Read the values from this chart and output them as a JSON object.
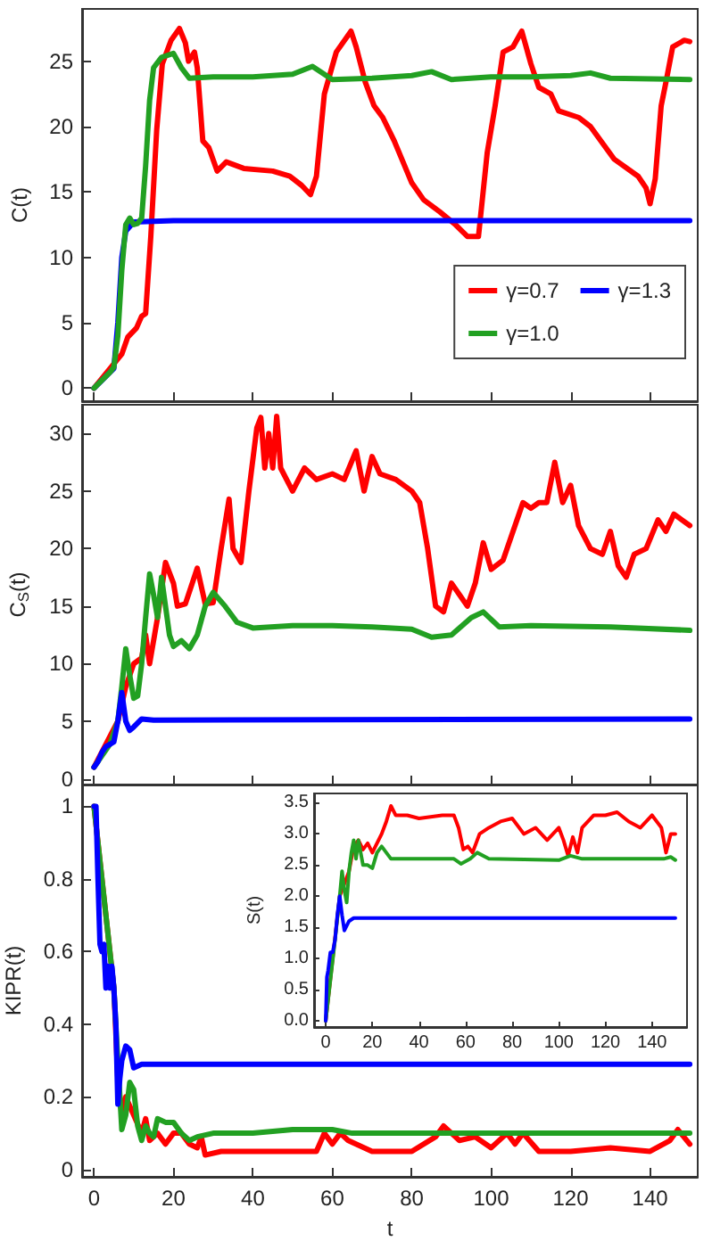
{
  "chart_data": [
    {
      "type": "line",
      "ylabel": "C(t)",
      "xlim": [
        -3,
        152
      ],
      "xticks": [
        0,
        20,
        40,
        60,
        80,
        100,
        120,
        140
      ],
      "ylim": [
        -1,
        29
      ],
      "yticks": [
        0,
        5,
        10,
        15,
        20,
        25
      ],
      "tick_labels": "y",
      "legend": "bottom right",
      "grid": false,
      "marker": "none",
      "line_style": "solid",
      "series": [
        {
          "name": "γ=0.7",
          "color": "#ff0000",
          "x": [
            0,
            7,
            8.5,
            10.7,
            12,
            13,
            14.3,
            15.8,
            17.2,
            19.4,
            21.5,
            23,
            23.8,
            25.3,
            26,
            27.4,
            28.9,
            31,
            33.3,
            37.7,
            45,
            49.3,
            52.3,
            54.5,
            56,
            58,
            61,
            64.7,
            66,
            68.3,
            70.5,
            72.7,
            75.6,
            80,
            83,
            87,
            91,
            94,
            96.8,
            99,
            101,
            103,
            105.5,
            107.7,
            110,
            112,
            115,
            117,
            122,
            125,
            131,
            137,
            139,
            140,
            141.3,
            142.8,
            144,
            145.7,
            148.6,
            150
          ],
          "values": [
            0,
            2.6,
            3.9,
            4.6,
            5.5,
            5.7,
            11.6,
            19.8,
            24.8,
            26.6,
            27.5,
            26.4,
            25,
            25.7,
            24.5,
            18.9,
            18.4,
            16.6,
            17.3,
            16.8,
            16.6,
            16.2,
            15.5,
            14.8,
            16.2,
            22.5,
            25.7,
            27.3,
            26.1,
            23.4,
            21.6,
            20.7,
            18.9,
            15.7,
            14.4,
            13.5,
            12.5,
            11.6,
            11.6,
            18,
            21.6,
            25.7,
            26.1,
            27.3,
            24.8,
            23,
            22.5,
            21.2,
            20.7,
            20,
            17.5,
            16.2,
            15.3,
            14.1,
            16,
            21.6,
            23.4,
            26.1,
            26.6,
            26.5
          ]
        },
        {
          "name": "γ=1.3",
          "color": "#0000ff",
          "x": [
            0,
            2,
            4,
            5,
            6,
            7,
            8,
            10,
            20,
            150
          ],
          "values": [
            0,
            0.6,
            1.2,
            1.5,
            5,
            10,
            12,
            12.7,
            12.8,
            12.8
          ]
        },
        {
          "name": "γ=1.0",
          "color": "#22a022",
          "x": [
            0,
            4,
            5,
            6,
            7,
            8,
            9,
            10,
            11,
            12,
            13,
            14,
            15,
            17,
            20,
            22,
            24,
            30,
            40,
            50,
            55,
            60,
            70,
            80,
            85,
            90,
            100,
            110,
            120,
            125,
            130,
            150
          ],
          "values": [
            0,
            1.2,
            1.6,
            4,
            9,
            12.5,
            13,
            12.5,
            12.6,
            13,
            17,
            22,
            24.5,
            25.3,
            25.6,
            24.5,
            23.7,
            23.8,
            23.8,
            24,
            24.6,
            23.6,
            23.7,
            23.9,
            24.2,
            23.6,
            23.8,
            23.8,
            23.9,
            24.1,
            23.7,
            23.6
          ]
        }
      ]
    },
    {
      "type": "line",
      "ylabel": "C$_{S}$(t)",
      "xlim": [
        -3,
        152
      ],
      "xticks": [
        0,
        20,
        40,
        60,
        80,
        100,
        120,
        140
      ],
      "ylim": [
        -0.5,
        32.5
      ],
      "yticks": [
        0,
        5,
        10,
        15,
        20,
        25,
        30
      ],
      "tick_labels": "y",
      "grid": false,
      "marker": "none",
      "line_style": "solid",
      "series": [
        {
          "color": "#ff0000",
          "x": [
            0,
            6,
            8,
            10,
            12,
            13,
            14,
            16,
            18,
            20,
            21,
            23,
            26,
            28,
            30,
            32,
            34,
            35,
            37,
            39,
            41,
            42,
            43,
            44,
            45,
            46,
            47,
            50,
            53,
            56,
            60,
            63,
            66,
            68,
            70,
            72,
            76,
            80,
            82,
            84,
            86,
            88,
            90,
            92,
            94,
            96,
            98,
            100,
            103,
            106,
            108,
            110,
            112,
            114,
            116,
            118,
            120,
            122,
            125,
            128,
            130,
            132,
            134,
            136,
            139,
            142,
            144,
            146,
            148,
            150
          ],
          "values": [
            1,
            5,
            8,
            10,
            10.5,
            12.5,
            10,
            14,
            18.8,
            17,
            15,
            15.2,
            18.3,
            15.2,
            15.3,
            20,
            24.3,
            20,
            18.8,
            25,
            30.5,
            31.4,
            27,
            30,
            27,
            31.5,
            27,
            25,
            27,
            26,
            26.5,
            26,
            28.5,
            25,
            28,
            26.5,
            26,
            25,
            24,
            20,
            15,
            14.5,
            17,
            16,
            15,
            17,
            20.5,
            18.2,
            19,
            22,
            24,
            23.5,
            24,
            24,
            27.5,
            24,
            25.5,
            22,
            20,
            19.5,
            21.5,
            18.5,
            17.5,
            19.5,
            20,
            22.5,
            21.5,
            23,
            22.5,
            22
          ]
        },
        {
          "color": "#22a022",
          "x": [
            0,
            4,
            6,
            7,
            8,
            9,
            10,
            11,
            12,
            13,
            14,
            15,
            16,
            17,
            18,
            19,
            20,
            22,
            24,
            26,
            28,
            30,
            33,
            36,
            40,
            50,
            60,
            70,
            80,
            85,
            90,
            95,
            98,
            102,
            110,
            130,
            150
          ],
          "values": [
            1,
            3,
            5,
            8,
            11.3,
            9,
            7,
            7.2,
            10,
            14,
            17.8,
            16,
            14,
            17.5,
            15,
            12.5,
            11.5,
            12,
            11.3,
            12.5,
            15,
            16.2,
            15,
            13.6,
            13.1,
            13.3,
            13.3,
            13.2,
            13,
            12.3,
            12.5,
            14,
            14.5,
            13.2,
            13.3,
            13.2,
            12.9
          ]
        },
        {
          "color": "#0000ff",
          "x": [
            0,
            1,
            2,
            3,
            4,
            5,
            6,
            7,
            8,
            9,
            10,
            12,
            15,
            150
          ],
          "values": [
            1,
            1.5,
            2.3,
            2.8,
            3,
            3.2,
            5,
            7.5,
            5,
            4.2,
            4.5,
            5.2,
            5.1,
            5.2
          ]
        }
      ]
    },
    {
      "type": "line",
      "xlabel": "t",
      "ylabel": "KIPR(t)",
      "xlim": [
        -3,
        152
      ],
      "xticks": [
        0,
        20,
        40,
        60,
        80,
        100,
        120,
        140
      ],
      "ylim": [
        -0.02,
        1.06
      ],
      "yticks": [
        0,
        0.2,
        0.4,
        0.6,
        0.8,
        1
      ],
      "grid": false,
      "marker": "none",
      "line_style": "solid",
      "series": [
        {
          "color": "#ff0000",
          "x": [
            0,
            5,
            6,
            7,
            8,
            10,
            12,
            13,
            14,
            16,
            18,
            20,
            22,
            24,
            26,
            27,
            28,
            32,
            40,
            50,
            56,
            58,
            60,
            62,
            64,
            70,
            80,
            86,
            88,
            92,
            96,
            100,
            104,
            106,
            108,
            112,
            120,
            130,
            140,
            145,
            147,
            150
          ],
          "values": [
            1,
            0.5,
            0.25,
            0.15,
            0.2,
            0.15,
            0.1,
            0.14,
            0.08,
            0.1,
            0.07,
            0.1,
            0.1,
            0.07,
            0.06,
            0.09,
            0.04,
            0.05,
            0.05,
            0.05,
            0.05,
            0.1,
            0.07,
            0.1,
            0.08,
            0.05,
            0.05,
            0.09,
            0.12,
            0.08,
            0.09,
            0.06,
            0.1,
            0.07,
            0.1,
            0.05,
            0.05,
            0.06,
            0.05,
            0.08,
            0.11,
            0.07
          ]
        },
        {
          "color": "#22a022",
          "x": [
            0,
            5,
            6,
            7,
            8,
            9,
            10,
            11,
            12,
            13,
            14,
            15,
            16,
            18,
            20,
            22,
            24,
            26,
            30,
            40,
            50,
            60,
            65,
            70,
            80,
            100,
            120,
            140,
            150
          ],
          "values": [
            1,
            0.5,
            0.3,
            0.11,
            0.15,
            0.24,
            0.22,
            0.12,
            0.08,
            0.12,
            0.1,
            0.09,
            0.14,
            0.13,
            0.13,
            0.1,
            0.08,
            0.09,
            0.1,
            0.1,
            0.11,
            0.11,
            0.1,
            0.1,
            0.1,
            0.1,
            0.1,
            0.1,
            0.1
          ]
        },
        {
          "color": "#0000ff",
          "x": [
            0,
            0.5,
            1,
            1.5,
            2,
            2.5,
            3,
            3.5,
            4,
            4.5,
            5,
            5.5,
            6,
            6.5,
            7,
            8,
            9,
            10,
            12,
            15,
            150
          ],
          "values": [
            1,
            1,
            0.8,
            0.62,
            0.6,
            0.62,
            0.5,
            0.56,
            0.5,
            0.56,
            0.5,
            0.4,
            0.18,
            0.25,
            0.3,
            0.34,
            0.33,
            0.28,
            0.29,
            0.29,
            0.29
          ]
        }
      ]
    },
    {
      "type": "line",
      "ylabel": "S(t)",
      "xlim": [
        -5,
        155
      ],
      "xticks": [
        0,
        20,
        40,
        60,
        80,
        100,
        120,
        140
      ],
      "ylim": [
        -0.1,
        3.65
      ],
      "yticks": [
        {
          "value": 0,
          "label": "0.0"
        },
        {
          "value": 0.5,
          "label": "0.5"
        },
        {
          "value": 1,
          "label": "1.0"
        },
        {
          "value": 1.5,
          "label": "1.5"
        },
        {
          "value": 2,
          "label": "2.0"
        },
        {
          "value": 2.5,
          "label": "2.5"
        },
        {
          "value": 3,
          "label": "3.0"
        },
        {
          "value": 3.5,
          "label": "3.5"
        }
      ],
      "grid": false,
      "marker": "none",
      "line_style": "solid",
      "series": [
        {
          "color": "#ff0000",
          "x": [
            0,
            6,
            8,
            10,
            12,
            14,
            16,
            18,
            20,
            24,
            26,
            28,
            30,
            35,
            40,
            50,
            55,
            57,
            59,
            61,
            63,
            66,
            70,
            75,
            80,
            85,
            90,
            95,
            100,
            102,
            104,
            106,
            108,
            110,
            115,
            120,
            125,
            130,
            135,
            140,
            144,
            146,
            148,
            150
          ],
          "values": [
            0,
            2,
            2.2,
            2.4,
            2.8,
            2.9,
            2.75,
            2.85,
            2.7,
            3,
            3.2,
            3.45,
            3.3,
            3.3,
            3.25,
            3.3,
            3.3,
            3.1,
            2.75,
            2.8,
            2.7,
            3,
            3.1,
            3.2,
            3.25,
            3,
            3.1,
            2.9,
            3.1,
            2.9,
            2.65,
            2.95,
            2.7,
            3.1,
            3.3,
            3.3,
            3.35,
            3.2,
            3.1,
            3.3,
            3.1,
            2.7,
            3,
            3
          ]
        },
        {
          "color": "#22a022",
          "x": [
            0,
            4,
            6,
            7,
            8,
            9,
            10,
            11,
            12,
            13,
            14,
            16,
            18,
            20,
            22,
            24,
            28,
            40,
            55,
            58,
            62,
            65,
            70,
            100,
            105,
            110,
            145,
            148,
            150
          ],
          "values": [
            0,
            1.3,
            2,
            2.4,
            2.1,
            1.9,
            2.4,
            2.7,
            2.9,
            2.6,
            2.9,
            2.5,
            2.5,
            2.45,
            2.7,
            2.8,
            2.6,
            2.6,
            2.6,
            2.52,
            2.6,
            2.7,
            2.6,
            2.58,
            2.65,
            2.6,
            2.6,
            2.63,
            2.58
          ]
        },
        {
          "color": "#0000ff",
          "x": [
            0,
            0.5,
            1,
            2,
            3,
            4,
            5,
            6,
            7,
            8,
            10,
            12,
            150
          ],
          "values": [
            0,
            0.7,
            0.8,
            1.1,
            1.1,
            1.3,
            1.7,
            2,
            1.7,
            1.45,
            1.6,
            1.65,
            1.65
          ]
        }
      ]
    }
  ]
}
